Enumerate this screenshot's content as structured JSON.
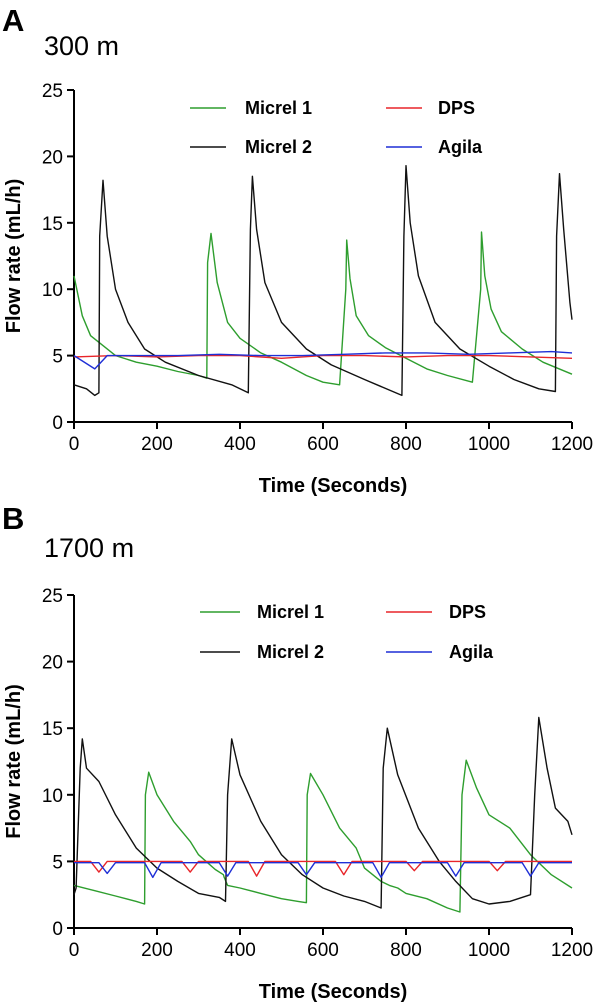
{
  "chart_data": [
    {
      "type": "line",
      "panel": "A",
      "title": "300 m",
      "xlabel": "Time (Seconds)",
      "ylabel": "Flow rate (mL/h)",
      "xlim": [
        0,
        1200
      ],
      "ylim": [
        0,
        25
      ],
      "xticks": [
        0,
        200,
        400,
        600,
        800,
        1000,
        1200
      ],
      "yticks": [
        0,
        5,
        10,
        15,
        20,
        25
      ],
      "grid": false,
      "legend_position": "top",
      "series": [
        {
          "name": "Micrel 1",
          "color": "#2e9e2e",
          "x": [
            0,
            20,
            40,
            60,
            100,
            150,
            200,
            250,
            300,
            320,
            322,
            330,
            345,
            370,
            400,
            450,
            500,
            560,
            600,
            640,
            655,
            657,
            665,
            680,
            710,
            750,
            800,
            850,
            900,
            960,
            980,
            982,
            990,
            1005,
            1030,
            1080,
            1130,
            1200
          ],
          "y": [
            11,
            8,
            6.5,
            6,
            5,
            4.5,
            4.2,
            3.8,
            3.5,
            3.3,
            12,
            14.2,
            10.5,
            7.5,
            6.3,
            5.2,
            4.5,
            3.5,
            3,
            2.8,
            10,
            13.7,
            10.8,
            8,
            6.5,
            5.6,
            4.8,
            4,
            3.5,
            3,
            10,
            14.3,
            11,
            8.5,
            6.8,
            5.5,
            4.5,
            3.6
          ]
        },
        {
          "name": "Micrel 2",
          "color": "#111111",
          "x": [
            0,
            30,
            50,
            60,
            62,
            70,
            80,
            100,
            130,
            170,
            220,
            300,
            380,
            420,
            425,
            430,
            440,
            460,
            500,
            560,
            620,
            700,
            790,
            795,
            800,
            810,
            830,
            870,
            930,
            1000,
            1060,
            1120,
            1160,
            1163,
            1170,
            1180,
            1195,
            1200
          ],
          "y": [
            2.8,
            2.5,
            2,
            2.2,
            14,
            18.2,
            14,
            10,
            7.5,
            5.5,
            4.5,
            3.5,
            2.8,
            2.2,
            14.5,
            18.5,
            14.5,
            10.5,
            7.5,
            5.5,
            4.3,
            3.2,
            2,
            14,
            19.3,
            15,
            11,
            7.5,
            5.5,
            4.2,
            3.2,
            2.5,
            2.3,
            14,
            18.7,
            14.5,
            9,
            7.7
          ]
        },
        {
          "name": "DPS",
          "color": "#e8252a",
          "x": [
            0,
            100,
            200,
            300,
            400,
            500,
            600,
            700,
            800,
            900,
            1000,
            1100,
            1200
          ],
          "y": [
            4.9,
            5,
            4.9,
            5,
            5,
            4.8,
            5,
            5,
            4.9,
            5,
            5,
            4.9,
            4.8
          ]
        },
        {
          "name": "Agila",
          "color": "#1f2fd6",
          "x": [
            0,
            50,
            80,
            150,
            250,
            350,
            450,
            550,
            650,
            750,
            850,
            950,
            1050,
            1150,
            1200
          ],
          "y": [
            5,
            4,
            5,
            5,
            5,
            5.1,
            5,
            5,
            5.1,
            5.2,
            5.2,
            5.1,
            5.2,
            5.3,
            5.2
          ]
        }
      ]
    },
    {
      "type": "line",
      "panel": "B",
      "title": "1700 m",
      "xlabel": "Time (Seconds)",
      "ylabel": "Flow rate (mL/h)",
      "xlim": [
        0,
        1200
      ],
      "ylim": [
        0,
        25
      ],
      "xticks": [
        0,
        200,
        400,
        600,
        800,
        1000,
        1200
      ],
      "yticks": [
        0,
        5,
        10,
        15,
        20,
        25
      ],
      "grid": false,
      "legend_position": "top",
      "series": [
        {
          "name": "Micrel 1",
          "color": "#2e9e2e",
          "x": [
            0,
            50,
            100,
            150,
            170,
            172,
            180,
            200,
            240,
            280,
            300,
            340,
            360,
            362,
            370,
            400,
            450,
            500,
            540,
            560,
            562,
            570,
            600,
            640,
            680,
            700,
            740,
            760,
            780,
            800,
            850,
            900,
            930,
            935,
            945,
            970,
            1000,
            1050,
            1100,
            1150,
            1200
          ],
          "y": [
            3.2,
            2.8,
            2.4,
            2,
            1.8,
            10,
            11.7,
            10,
            8,
            6.5,
            5.5,
            4.4,
            4,
            3.8,
            3.2,
            3,
            2.6,
            2.2,
            2,
            1.9,
            10,
            11.6,
            10,
            7.5,
            6,
            4.5,
            3.5,
            3.2,
            3,
            2.6,
            2.2,
            1.5,
            1.2,
            10,
            12.6,
            10.5,
            8.5,
            7.5,
            5.5,
            4,
            3
          ]
        },
        {
          "name": "Micrel 2",
          "color": "#111111",
          "x": [
            0,
            5,
            15,
            20,
            30,
            60,
            100,
            150,
            200,
            250,
            300,
            350,
            365,
            370,
            380,
            400,
            450,
            500,
            550,
            600,
            650,
            700,
            740,
            745,
            755,
            780,
            830,
            880,
            920,
            960,
            1000,
            1050,
            1100,
            1110,
            1120,
            1140,
            1160,
            1190,
            1200
          ],
          "y": [
            2.5,
            3,
            12,
            14.2,
            12,
            11,
            8.5,
            6,
            4.5,
            3.5,
            2.6,
            2.3,
            2,
            10,
            14.2,
            11.5,
            8,
            5.5,
            4,
            3,
            2.4,
            2,
            1.5,
            12,
            15,
            11.5,
            7.5,
            5,
            3.5,
            2.2,
            1.8,
            2,
            2.5,
            10,
            15.8,
            12,
            9,
            8,
            7
          ]
        },
        {
          "name": "DPS",
          "color": "#e8252a",
          "x": [
            0,
            40,
            60,
            80,
            150,
            200,
            260,
            280,
            300,
            420,
            440,
            460,
            600,
            630,
            650,
            670,
            800,
            820,
            840,
            860,
            1000,
            1020,
            1040,
            1060,
            1200
          ],
          "y": [
            5,
            5,
            4.2,
            5,
            5,
            5,
            5,
            4.2,
            5,
            5,
            3.9,
            5,
            5,
            5,
            4,
            5,
            5,
            4.3,
            5,
            5,
            5,
            4.3,
            5,
            5,
            5
          ]
        },
        {
          "name": "Agila",
          "color": "#1f2fd6",
          "x": [
            0,
            60,
            80,
            100,
            170,
            190,
            210,
            350,
            370,
            390,
            540,
            560,
            580,
            720,
            740,
            760,
            900,
            920,
            940,
            1080,
            1100,
            1120,
            1200
          ],
          "y": [
            4.9,
            4.9,
            4.1,
            4.9,
            4.9,
            3.8,
            4.9,
            4.9,
            3.9,
            4.9,
            4.9,
            4,
            4.9,
            4.9,
            3.8,
            4.9,
            4.9,
            3.9,
            4.9,
            4.9,
            3.9,
            4.9,
            4.9
          ]
        }
      ]
    }
  ]
}
